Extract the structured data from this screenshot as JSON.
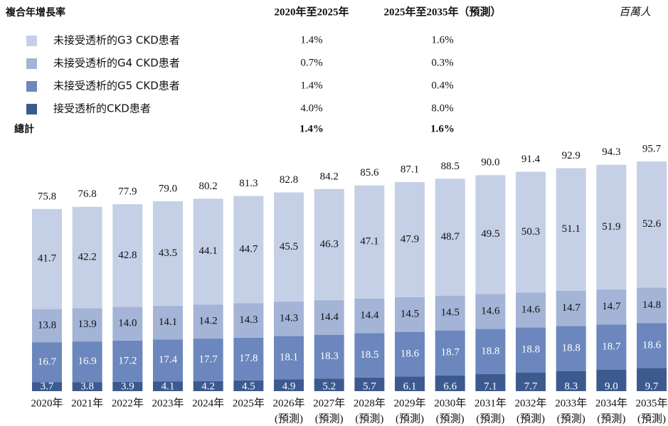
{
  "chart_data": {
    "type": "stacked_bar",
    "cagr_table": {
      "header": [
        "複合年增長率",
        "2020年至2025年",
        "2025年至2035年（預測）"
      ],
      "unit": "百萬人",
      "rows": [
        [
          "1.4%",
          "1.6%"
        ],
        [
          "0.7%",
          "0.3%"
        ],
        [
          "1.4%",
          "0.4%"
        ],
        [
          "4.0%",
          "8.0%"
        ]
      ],
      "total_label": "總計",
      "total": [
        "1.4%",
        "1.6%"
      ]
    },
    "categories": [
      "2020年",
      "2021年",
      "2022年",
      "2023年",
      "2024年",
      "2025年",
      "2026年",
      "2027年",
      "2028年",
      "2029年",
      "2030年",
      "2031年",
      "2032年",
      "2033年",
      "2034年",
      "2035年"
    ],
    "category_sublabels": [
      null,
      null,
      null,
      null,
      null,
      null,
      "(預測)",
      "(預測)",
      "(預測)",
      "(預測)",
      "(預測)",
      "(預測)",
      "(預測)",
      "(預測)",
      "(預測)",
      "(預測)"
    ],
    "series": [
      {
        "name": "未接受透析的G3 CKD患者",
        "color": "#c5d0e6",
        "label_color": "#111111",
        "values": [
          41.7,
          42.2,
          42.8,
          43.5,
          44.1,
          44.7,
          45.5,
          46.3,
          47.1,
          47.9,
          48.7,
          49.5,
          50.3,
          51.1,
          51.9,
          52.6
        ],
        "value_labels": [
          "41.7",
          "42.2",
          "42.8",
          "43.5",
          "44.1",
          "44.7",
          "45.5",
          "46.3",
          "47.1",
          "47.9",
          "48.7",
          "49.5",
          "50.3",
          "51.1",
          "51.9",
          "52.6"
        ]
      },
      {
        "name": "未接受透析的G4 CKD患者",
        "color": "#a3b4d6",
        "label_color": "#111111",
        "values": [
          13.8,
          13.9,
          14.0,
          14.1,
          14.2,
          14.3,
          14.3,
          14.4,
          14.4,
          14.5,
          14.5,
          14.6,
          14.6,
          14.7,
          14.7,
          14.8
        ],
        "value_labels": [
          "13.8",
          "13.9",
          "14.0",
          "14.1",
          "14.2",
          "14.3",
          "14.3",
          "14.4",
          "14.4",
          "14.5",
          "14.5",
          "14.6",
          "14.6",
          "14.7",
          "14.7",
          "14.8"
        ]
      },
      {
        "name": "未接受透析的G5 CKD患者",
        "color": "#6b87bd",
        "label_color": "#ffffff",
        "values": [
          16.7,
          16.9,
          17.2,
          17.4,
          17.7,
          17.8,
          18.1,
          18.3,
          18.5,
          18.6,
          18.7,
          18.8,
          18.8,
          18.8,
          18.7,
          18.6
        ],
        "value_labels": [
          "16.7",
          "16.9",
          "17.2",
          "17.4",
          "17.7",
          "17.8",
          "18.1",
          "18.3",
          "18.5",
          "18.6",
          "18.7",
          "18.8",
          "18.8",
          "18.8",
          "18.7",
          "18.6"
        ]
      },
      {
        "name": "接受透析的CKD患者",
        "color": "#3d5a8f",
        "label_color": "#ffffff",
        "values": [
          3.7,
          3.8,
          3.9,
          4.1,
          4.2,
          4.5,
          4.9,
          5.2,
          5.7,
          6.1,
          6.6,
          7.1,
          7.7,
          8.3,
          9.0,
          9.7
        ],
        "value_labels": [
          "3.7",
          "3.8",
          "3.9",
          "4.1",
          "4.2",
          "4.5",
          "4.9",
          "5.2",
          "5.7",
          "6.1",
          "6.6",
          "7.1",
          "7.7",
          "8.3",
          "9.0",
          "9.7"
        ]
      }
    ],
    "totals": [
      75.8,
      76.8,
      77.9,
      79.0,
      80.2,
      81.3,
      82.8,
      84.2,
      85.6,
      87.1,
      88.5,
      90.0,
      91.4,
      92.9,
      94.3,
      95.7
    ],
    "total_labels": [
      "75.8",
      "76.8",
      "77.9",
      "79.0",
      "80.2",
      "81.3",
      "82.8",
      "84.2",
      "85.6",
      "87.1",
      "88.5",
      "90.0",
      "91.4",
      "92.9",
      "94.3",
      "95.7"
    ]
  }
}
